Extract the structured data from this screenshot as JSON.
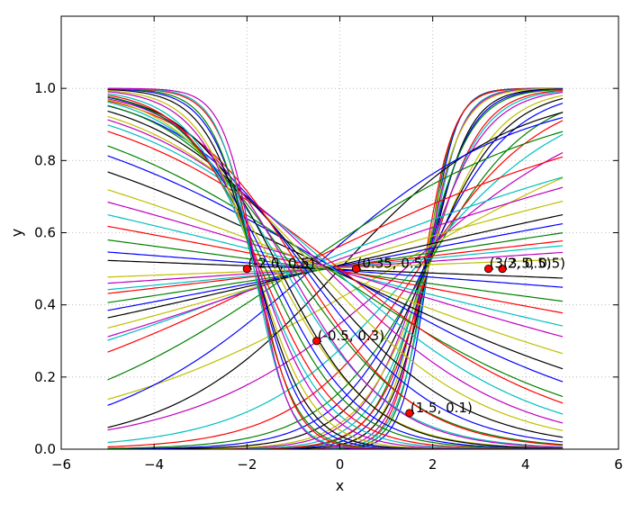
{
  "chart_data": {
    "type": "line",
    "title": "",
    "xlabel": "x",
    "ylabel": "y",
    "xlim": [
      -6,
      6
    ],
    "ylim": [
      0,
      1.2
    ],
    "x_ticks": [
      -6,
      -4,
      -2,
      0,
      2,
      4,
      6
    ],
    "x_tick_labels": [
      "−6",
      "−4",
      "−2",
      "0",
      "2",
      "4",
      "6"
    ],
    "y_ticks": [
      0.0,
      0.2,
      0.4,
      0.6,
      0.8,
      1.0
    ],
    "y_tick_labels": [
      "0.0",
      "0.2",
      "0.4",
      "0.6",
      "0.8",
      "1.0"
    ],
    "grid": true,
    "curve_x_range": [
      -5,
      4.8
    ],
    "line_colors": [
      "#0000ff",
      "#008000",
      "#ff0000",
      "#00bfbf",
      "#bf00bf",
      "#bfbf00",
      "#000000"
    ],
    "point_color": "#ff0000",
    "points": [
      {
        "x": -2.0,
        "y": 0.5,
        "label": "(-2.0, 0.5)"
      },
      {
        "x": 0.35,
        "y": 0.5,
        "label": "(0.35, 0.5)"
      },
      {
        "x": -0.5,
        "y": 0.3,
        "label": "(-0.5, 0.3)"
      },
      {
        "x": 1.5,
        "y": 0.1,
        "label": "(1.5, 0.1)"
      },
      {
        "x": 3.2,
        "y": 0.5,
        "label": "(3.2, 0.5)"
      },
      {
        "x": 3.5,
        "y": 0.5,
        "label": "(3.5, 0.5)"
      }
    ],
    "series": [
      {
        "a": 3.5,
        "b": 1.9
      },
      {
        "a": 3.3,
        "b": 1.85
      },
      {
        "a": 3.1,
        "b": 1.8
      },
      {
        "a": 2.9,
        "b": 1.9
      },
      {
        "a": 2.7,
        "b": 1.85
      },
      {
        "a": 2.5,
        "b": 1.8
      },
      {
        "a": 2.3,
        "b": 1.9
      },
      {
        "a": 2.1,
        "b": 1.85
      },
      {
        "a": 1.95,
        "b": 1.8
      },
      {
        "a": 1.8,
        "b": 1.9
      },
      {
        "a": 1.65,
        "b": 1.85
      },
      {
        "a": 1.5,
        "b": 1.8
      },
      {
        "a": 1.35,
        "b": 1.9
      },
      {
        "a": 1.2,
        "b": 1.85
      },
      {
        "a": 1.05,
        "b": 1.8
      },
      {
        "a": 0.9,
        "b": 1.85
      },
      {
        "a": 0.75,
        "b": 1.7
      },
      {
        "a": 0.6,
        "b": 1.6
      },
      {
        "a": 0.45,
        "b": 1.4
      },
      {
        "a": 0.3,
        "b": 1.1
      },
      {
        "a": 0.55,
        "b": 0.0
      },
      {
        "a": 0.45,
        "b": -0.6
      },
      {
        "a": 0.35,
        "b": -0.9
      },
      {
        "a": 0.25,
        "b": -1.0
      },
      {
        "a": 0.2,
        "b": -0.8
      },
      {
        "a": 0.18,
        "b": -0.6
      },
      {
        "a": 0.15,
        "b": -0.45
      },
      {
        "a": 0.12,
        "b": -0.35
      },
      {
        "a": 0.1,
        "b": -0.3
      },
      {
        "a": 0.08,
        "b": -0.25
      },
      {
        "a": 0.06,
        "b": -0.4
      },
      {
        "a": 0.05,
        "b": -0.35
      },
      {
        "a": 0.035,
        "b": -0.4
      },
      {
        "a": 0.02,
        "b": -0.42
      },
      {
        "a": -0.02,
        "b": -0.38
      },
      {
        "a": -0.04,
        "b": -0.35
      },
      {
        "a": -0.07,
        "b": -0.4
      },
      {
        "a": -0.1,
        "b": -0.2
      },
      {
        "a": -0.13,
        "b": -0.25
      },
      {
        "a": -0.16,
        "b": -0.15
      },
      {
        "a": -0.2,
        "b": -0.3
      },
      {
        "a": -0.25,
        "b": -0.2
      },
      {
        "a": -0.3,
        "b": -0.1
      },
      {
        "a": -0.35,
        "b": -0.25
      },
      {
        "a": -0.4,
        "b": 0.0
      },
      {
        "a": -0.45,
        "b": -0.15
      },
      {
        "a": -0.5,
        "b": -0.3
      },
      {
        "a": -0.55,
        "b": -0.5
      },
      {
        "a": -0.62,
        "b": -0.65
      },
      {
        "a": -0.7,
        "b": -0.75
      },
      {
        "a": -0.75,
        "b": -1.0
      },
      {
        "a": -0.8,
        "b": -0.85
      },
      {
        "a": -0.85,
        "b": -1.2
      },
      {
        "a": -0.9,
        "b": -1.1
      },
      {
        "a": -0.95,
        "b": -1.4
      },
      {
        "a": -1.0,
        "b": -1.3
      },
      {
        "a": -1.05,
        "b": -1.5
      },
      {
        "a": -1.1,
        "b": -1.6
      },
      {
        "a": -1.2,
        "b": -1.7
      },
      {
        "a": -1.3,
        "b": -1.75
      },
      {
        "a": -1.45,
        "b": -1.75
      },
      {
        "a": -1.6,
        "b": -1.8
      },
      {
        "a": -1.8,
        "b": -1.8
      },
      {
        "a": -2.0,
        "b": -1.8
      },
      {
        "a": -2.2,
        "b": -1.85
      },
      {
        "a": -2.4,
        "b": -1.8
      },
      {
        "a": -2.6,
        "b": -1.85
      },
      {
        "a": -2.8,
        "b": -1.8
      }
    ]
  }
}
